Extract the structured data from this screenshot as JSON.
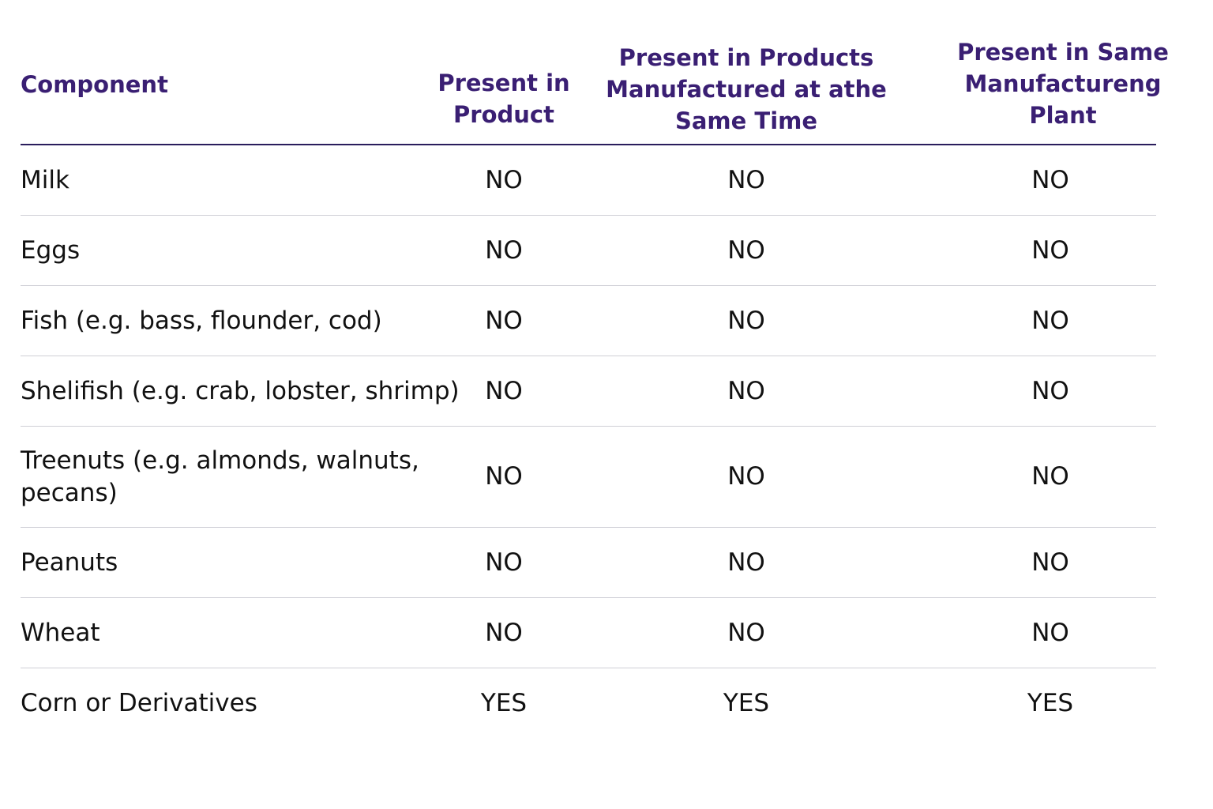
{
  "table": {
    "headers": {
      "component": "Component",
      "present_in_product": "Present in Product",
      "present_same_time": "Present in Products Manufactured at athe Same Time",
      "present_same_plant": "Present in Same Manufactureng Plant"
    },
    "rows": [
      {
        "component": "Milk",
        "a": "NO",
        "b": "NO",
        "c": "NO"
      },
      {
        "component": "Eggs",
        "a": "NO",
        "b": "NO",
        "c": "NO"
      },
      {
        "component": "Fish (e.g. bass, flounder, cod)",
        "a": "NO",
        "b": "NO",
        "c": "NO"
      },
      {
        "component": "Shelifish (e.g. crab, lobster, shrimp)",
        "a": "NO",
        "b": "NO",
        "c": "NO"
      },
      {
        "component": "Treenuts  (e.g. almonds, walnuts, pecans)",
        "a": "NO",
        "b": "NO",
        "c": "NO"
      },
      {
        "component": "Peanuts",
        "a": "NO",
        "b": "NO",
        "c": "NO"
      },
      {
        "component": "Wheat",
        "a": "NO",
        "b": "NO",
        "c": "NO"
      },
      {
        "component": "Corn or Derivatives",
        "a": "YES",
        "b": "YES",
        "c": "YES"
      }
    ]
  }
}
